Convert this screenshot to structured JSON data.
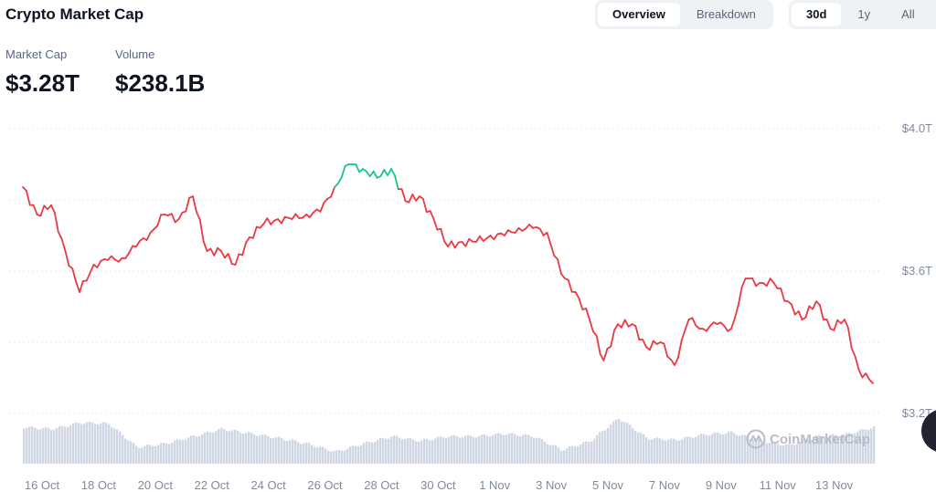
{
  "header": {
    "title": "Crypto Market Cap"
  },
  "view_tabs": [
    {
      "label": "Overview",
      "active": true
    },
    {
      "label": "Breakdown",
      "active": false
    }
  ],
  "range_tabs": [
    {
      "label": "30d",
      "active": true
    },
    {
      "label": "1y",
      "active": false
    },
    {
      "label": "All",
      "active": false
    }
  ],
  "stats": {
    "market_cap_label": "Market Cap",
    "market_cap_value": "$3.28T",
    "volume_label": "Volume",
    "volume_value": "$238.1B"
  },
  "watermark": "CoinMarketCap",
  "colors": {
    "up": "#16c784",
    "down": "#ea3943",
    "volume": "#cfd6e4"
  },
  "chart_data": {
    "type": "line",
    "ylim": [
      3.2,
      4.0
    ],
    "y_ticks": [
      "$4.0T",
      "$3.6T",
      "$3.2T"
    ],
    "x_ticks": [
      "16 Oct",
      "18 Oct",
      "20 Oct",
      "22 Oct",
      "24 Oct",
      "26 Oct",
      "28 Oct",
      "30 Oct",
      "1 Nov",
      "3 Nov",
      "5 Nov",
      "7 Nov",
      "9 Nov",
      "11 Nov",
      "13 Nov"
    ],
    "grid": true,
    "market_cap_T": [
      3.836,
      3.759,
      3.785,
      3.656,
      3.541,
      3.618,
      3.631,
      3.636,
      3.669,
      3.708,
      3.759,
      3.746,
      3.81,
      3.656,
      3.656,
      3.618,
      3.695,
      3.733,
      3.746,
      3.746,
      3.759,
      3.767,
      3.836,
      3.9,
      3.887,
      3.862,
      3.887,
      3.797,
      3.81,
      3.746,
      3.669,
      3.682,
      3.682,
      3.7,
      3.7,
      3.721,
      3.721,
      3.708,
      3.592,
      3.541,
      3.464,
      3.349,
      3.451,
      3.451,
      3.387,
      3.4,
      3.336,
      3.464,
      3.438,
      3.451,
      3.438,
      3.579,
      3.567,
      3.567,
      3.515,
      3.464,
      3.515,
      3.438,
      3.464,
      3.323,
      3.285
    ],
    "volume_relative": [
      40,
      38,
      45,
      44,
      18,
      22,
      30,
      38,
      33,
      28,
      22,
      13,
      22,
      30,
      25,
      30,
      30,
      33,
      30,
      15,
      25,
      50,
      28,
      26,
      32,
      34,
      25,
      20,
      30,
      32,
      40
    ]
  }
}
